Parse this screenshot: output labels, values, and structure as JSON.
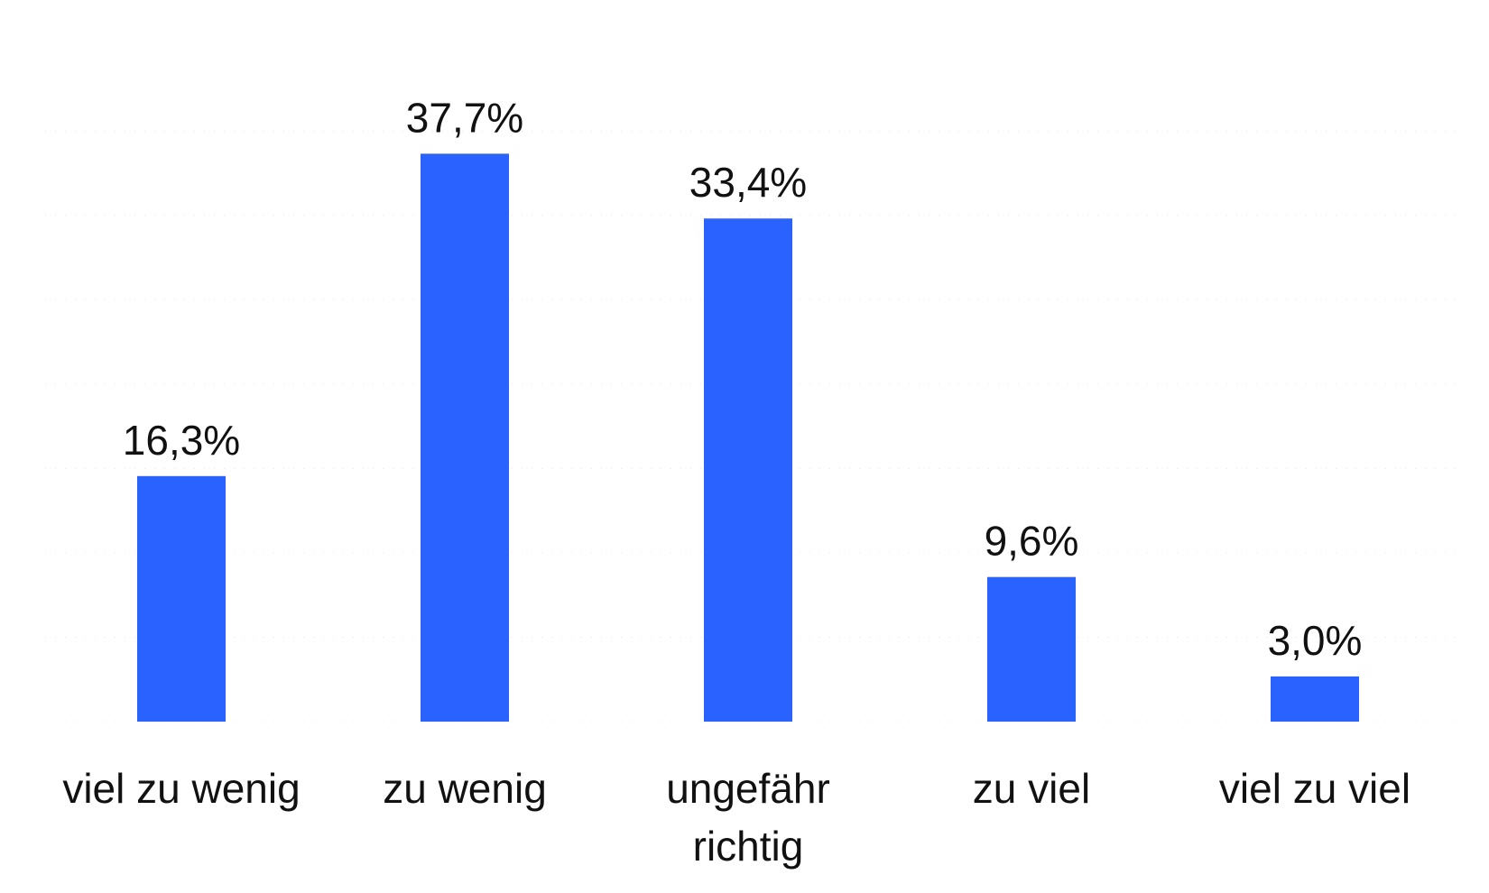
{
  "chart_data": {
    "type": "bar",
    "categories": [
      [
        "viel zu wenig"
      ],
      [
        "zu wenig"
      ],
      [
        "ungefähr",
        "richtig"
      ],
      [
        "zu viel"
      ],
      [
        "viel zu viel"
      ]
    ],
    "values": [
      16.3,
      37.7,
      33.4,
      9.6,
      3.0
    ],
    "value_labels": [
      "16,3%",
      "37,7%",
      "33,4%",
      "9,6%",
      "3,0%"
    ],
    "unit": "%",
    "ylim": [
      0,
      40
    ],
    "grid": true,
    "legend": "none",
    "title": "",
    "xlabel": "",
    "ylabel": "",
    "colors": {
      "bar": "#2962ff",
      "text": "#111111"
    }
  }
}
